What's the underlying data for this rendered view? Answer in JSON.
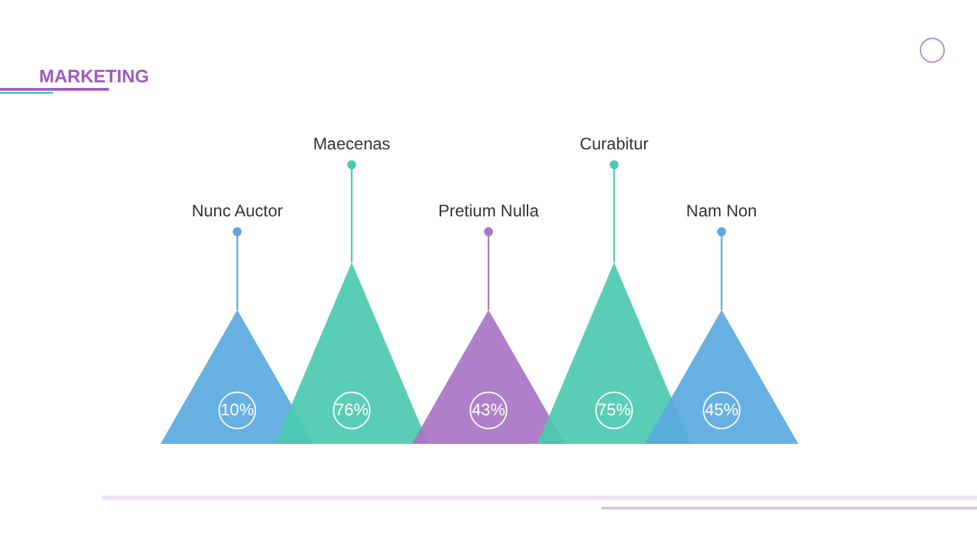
{
  "chart_data": {
    "type": "other",
    "title": "MARKETING",
    "categories": [
      "Nunc Auctor",
      "Maecenas",
      "Pretium Nulla",
      "Curabitur",
      "Nam Non"
    ],
    "colors": [
      "#5aa9e0",
      "#4cc9b0",
      "#a875c4",
      "#4cc9b0",
      "#5aa9e0"
    ],
    "values": [
      10,
      76,
      43,
      75,
      45
    ],
    "value_labels": [
      "10%",
      "76%",
      "43%",
      "75%",
      "45%"
    ]
  }
}
